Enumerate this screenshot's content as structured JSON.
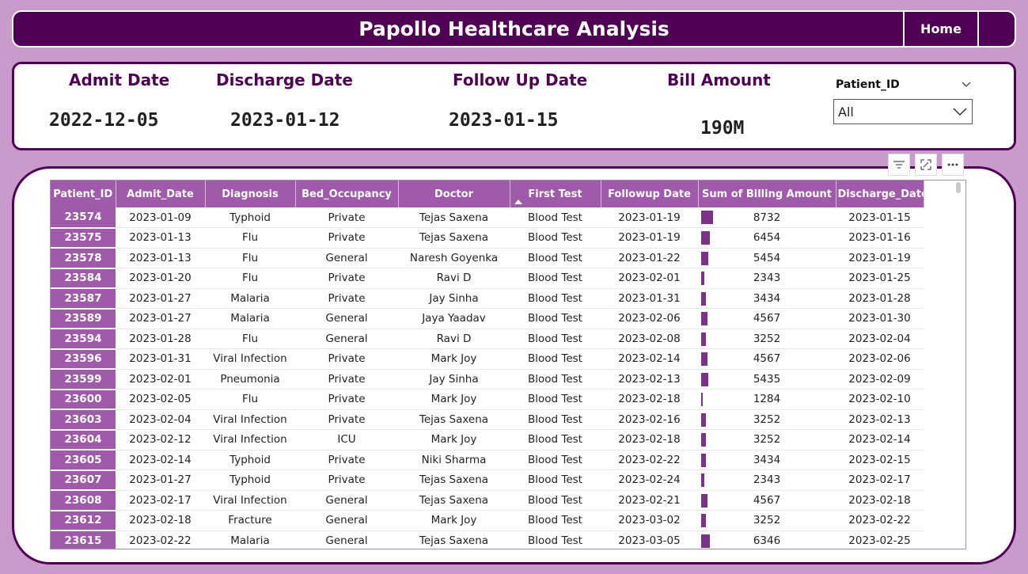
{
  "header": {
    "title": "Papollo Healthcare Analysis",
    "home_label": "Home"
  },
  "kpis": {
    "admit": {
      "label": "Admit Date",
      "value": "2022-12-05"
    },
    "discharge": {
      "label": "Discharge Date",
      "value": "2023-01-12"
    },
    "followup": {
      "label": "Follow Up Date",
      "value": "2023-01-15"
    },
    "bill": {
      "label": "Bill Amount",
      "value": "190M"
    }
  },
  "slicer": {
    "title": "Patient_ID",
    "selected": "All"
  },
  "table": {
    "columns": [
      "Patient_ID",
      "Admit_Date",
      "Diagnosis",
      "Bed_Occupancy",
      "Doctor",
      "First Test",
      "Followup Date",
      "Sum of Billing Amount",
      "Discharge_Date"
    ],
    "bar_max": 8732,
    "rows": [
      [
        "23574",
        "2023-01-09",
        "Typhoid",
        "Private",
        "Tejas Saxena",
        "Blood Test",
        "2023-01-19",
        "8732",
        "2023-01-15"
      ],
      [
        "23575",
        "2023-01-13",
        "Flu",
        "Private",
        "Tejas Saxena",
        "Blood Test",
        "2023-01-19",
        "6454",
        "2023-01-16"
      ],
      [
        "23578",
        "2023-01-13",
        "Flu",
        "General",
        "Naresh Goyenka",
        "Blood Test",
        "2023-01-22",
        "5454",
        "2023-01-19"
      ],
      [
        "23584",
        "2023-01-20",
        "Flu",
        "Private",
        "Ravi D",
        "Blood Test",
        "2023-02-01",
        "2343",
        "2023-01-25"
      ],
      [
        "23587",
        "2023-01-27",
        "Malaria",
        "Private",
        "Jay Sinha",
        "Blood Test",
        "2023-01-31",
        "3434",
        "2023-01-28"
      ],
      [
        "23589",
        "2023-01-27",
        "Malaria",
        "General",
        "Jaya Yaadav",
        "Blood Test",
        "2023-02-06",
        "4567",
        "2023-01-30"
      ],
      [
        "23594",
        "2023-01-28",
        "Flu",
        "General",
        "Ravi D",
        "Blood Test",
        "2023-02-08",
        "3252",
        "2023-02-04"
      ],
      [
        "23596",
        "2023-01-31",
        "Viral Infection",
        "Private",
        "Mark Joy",
        "Blood Test",
        "2023-02-14",
        "4567",
        "2023-02-06"
      ],
      [
        "23599",
        "2023-02-01",
        "Pneumonia",
        "Private",
        "Jay Sinha",
        "Blood Test",
        "2023-02-13",
        "5435",
        "2023-02-09"
      ],
      [
        "23600",
        "2023-02-05",
        "Flu",
        "Private",
        "Mark Joy",
        "Blood Test",
        "2023-02-18",
        "1284",
        "2023-02-10"
      ],
      [
        "23603",
        "2023-02-04",
        "Viral Infection",
        "Private",
        "Tejas Saxena",
        "Blood Test",
        "2023-02-16",
        "3252",
        "2023-02-13"
      ],
      [
        "23604",
        "2023-02-12",
        "Viral Infection",
        "ICU",
        "Mark Joy",
        "Blood Test",
        "2023-02-18",
        "3252",
        "2023-02-14"
      ],
      [
        "23605",
        "2023-02-14",
        "Typhoid",
        "Private",
        "Niki Sharma",
        "Blood Test",
        "2023-02-22",
        "3434",
        "2023-02-15"
      ],
      [
        "23607",
        "2023-01-27",
        "Typhoid",
        "Private",
        "Tejas Saxena",
        "Blood Test",
        "2023-02-24",
        "2343",
        "2023-02-17"
      ],
      [
        "23608",
        "2023-02-17",
        "Viral Infection",
        "General",
        "Tejas Saxena",
        "Blood Test",
        "2023-02-21",
        "4567",
        "2023-02-18"
      ],
      [
        "23612",
        "2023-02-18",
        "Fracture",
        "General",
        "Mark Joy",
        "Blood Test",
        "2023-03-02",
        "3252",
        "2023-02-22"
      ],
      [
        "23615",
        "2023-02-22",
        "Malaria",
        "General",
        "Tejas Saxena",
        "Blood Test",
        "2023-03-05",
        "6346",
        "2023-02-25"
      ]
    ]
  }
}
